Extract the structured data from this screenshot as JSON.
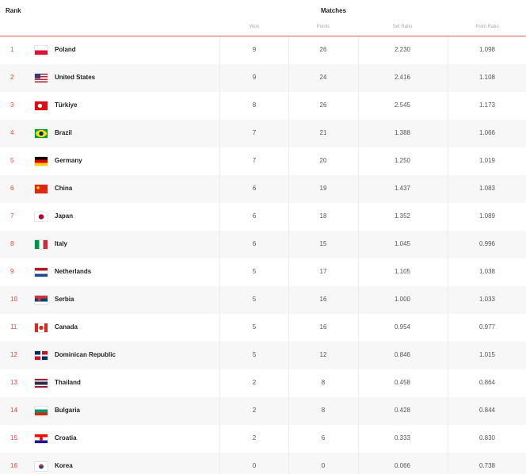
{
  "header": {
    "rank": "Rank",
    "matches": "Matches",
    "won": "Won",
    "points": "Points",
    "set_ratio": "Set Ratio",
    "point_ratio": "Point Ratio"
  },
  "accent": "#e8463c",
  "rows": [
    {
      "rank": "1",
      "team": "Poland",
      "flag": "flag-poland",
      "won": "9",
      "points": "26",
      "set_ratio": "2.230",
      "point_ratio": "1.098"
    },
    {
      "rank": "2",
      "team": "United States",
      "flag": "flag-usa",
      "won": "9",
      "points": "24",
      "set_ratio": "2.416",
      "point_ratio": "1.108"
    },
    {
      "rank": "3",
      "team": "Türkiye",
      "flag": "flag-turkiye",
      "won": "8",
      "points": "26",
      "set_ratio": "2.545",
      "point_ratio": "1.173"
    },
    {
      "rank": "4",
      "team": "Brazil",
      "flag": "flag-brazil",
      "won": "7",
      "points": "21",
      "set_ratio": "1.388",
      "point_ratio": "1.066"
    },
    {
      "rank": "5",
      "team": "Germany",
      "flag": "flag-germany",
      "won": "7",
      "points": "20",
      "set_ratio": "1.250",
      "point_ratio": "1.019"
    },
    {
      "rank": "6",
      "team": "China",
      "flag": "flag-china",
      "won": "6",
      "points": "19",
      "set_ratio": "1.437",
      "point_ratio": "1.083"
    },
    {
      "rank": "7",
      "team": "Japan",
      "flag": "flag-japan",
      "won": "6",
      "points": "18",
      "set_ratio": "1.352",
      "point_ratio": "1.089"
    },
    {
      "rank": "8",
      "team": "Italy",
      "flag": "flag-italy",
      "won": "6",
      "points": "15",
      "set_ratio": "1.045",
      "point_ratio": "0.996"
    },
    {
      "rank": "9",
      "team": "Netherlands",
      "flag": "flag-netherlands",
      "won": "5",
      "points": "17",
      "set_ratio": "1.105",
      "point_ratio": "1.038"
    },
    {
      "rank": "10",
      "team": "Serbia",
      "flag": "flag-serbia",
      "won": "5",
      "points": "16",
      "set_ratio": "1.000",
      "point_ratio": "1.033"
    },
    {
      "rank": "11",
      "team": "Canada",
      "flag": "flag-canada",
      "won": "5",
      "points": "16",
      "set_ratio": "0.954",
      "point_ratio": "0.977"
    },
    {
      "rank": "12",
      "team": "Dominican Republic",
      "flag": "flag-dominican-republic",
      "won": "5",
      "points": "12",
      "set_ratio": "0.846",
      "point_ratio": "1.015"
    },
    {
      "rank": "13",
      "team": "Thailand",
      "flag": "flag-thailand",
      "won": "2",
      "points": "8",
      "set_ratio": "0.458",
      "point_ratio": "0.864"
    },
    {
      "rank": "14",
      "team": "Bulgaria",
      "flag": "flag-bulgaria",
      "won": "2",
      "points": "8",
      "set_ratio": "0.428",
      "point_ratio": "0.844"
    },
    {
      "rank": "15",
      "team": "Croatia",
      "flag": "flag-croatia",
      "won": "2",
      "points": "6",
      "set_ratio": "0.333",
      "point_ratio": "0.830"
    },
    {
      "rank": "16",
      "team": "Korea",
      "flag": "flag-korea",
      "won": "0",
      "points": "0",
      "set_ratio": "0.066",
      "point_ratio": "0.738"
    }
  ]
}
